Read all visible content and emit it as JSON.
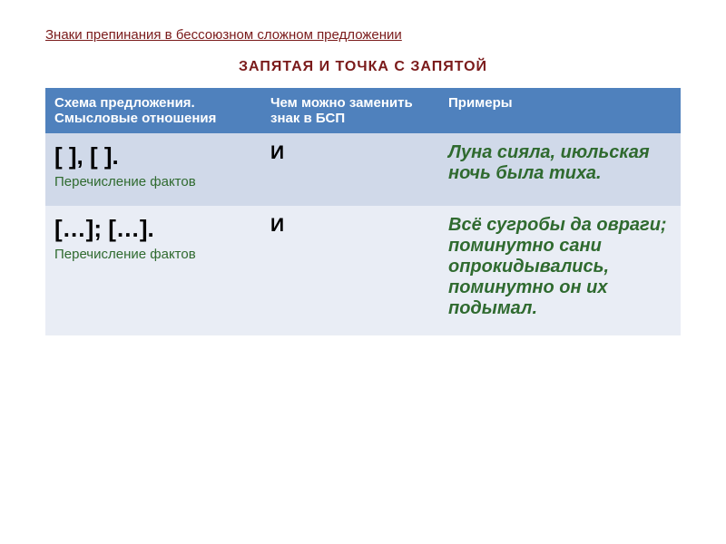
{
  "heading1": {
    "text": "Знаки препинания в бессоюзном сложном предложении",
    "color": "#7a1a1a",
    "fontSize": "15px"
  },
  "heading2": {
    "text": "ЗАПЯТАЯ И ТОЧКА С ЗАПЯТОЙ",
    "color": "#7a1a1a",
    "fontSize": "16px"
  },
  "table": {
    "headerBg": "#4f81bd",
    "headerColor": "#ffffff",
    "headerFontSize": "15px",
    "colWidths": [
      "34%",
      "28%",
      "38%"
    ],
    "columns": [
      "Схема предложения. Смысловые отношения",
      "Чем можно заменить знак в БСП",
      "Примеры"
    ],
    "schemaMainFontSize": "26px",
    "schemaSubFontSize": "15px",
    "schemaSubColor": "#2f6a2f",
    "replaceFontSize": "21px",
    "exampleFontSize": "20px",
    "exampleColor": "#2f6a2f",
    "rowEvenBg": "#d0d9e9",
    "rowOddBg": "#e9edf5",
    "rows": [
      {
        "schemaMain": "[ ], [ ].",
        "schemaSub": "Перечисление фактов",
        "replace": "И",
        "example": "Луна сияла, июльская ночь была тиха."
      },
      {
        "schemaMain": "[…]; […].",
        "schemaSub": "Перечисление фактов",
        "replace": "И",
        "example": "Всё сугробы да овраги; поминутно сани опрокидывались, поминутно он их подымал."
      }
    ]
  }
}
